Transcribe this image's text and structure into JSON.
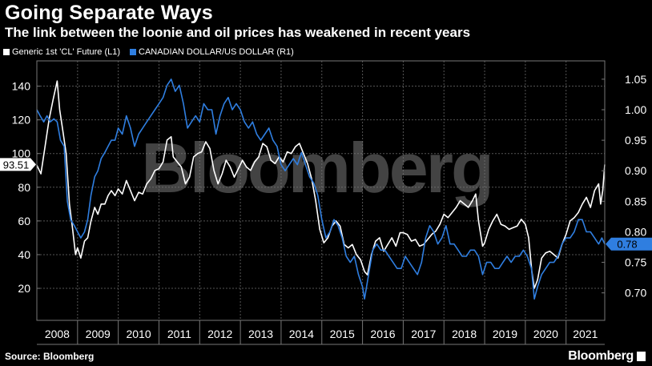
{
  "title": "Going Separate Ways",
  "subtitle": "The link between the loonie and oil prices has weakened in recent years",
  "legend": {
    "series1": "Generic 1st 'CL' Future (L1)",
    "series2": "CANADIAN DOLLAR/US DOLLAR (R1)"
  },
  "watermark": "Bloomberg",
  "source": "Source: Bloomberg",
  "logo": "Bloomberg",
  "colors": {
    "oil": "#ffffff",
    "cad": "#2f7ee0",
    "grid": "#555555",
    "background": "#000000"
  },
  "chart_data": {
    "type": "line",
    "x_categories": [
      "2008",
      "2009",
      "2010",
      "2011",
      "2012",
      "2013",
      "2014",
      "2015",
      "2016",
      "2017",
      "2018",
      "2019",
      "2020",
      "2021"
    ],
    "x_range": [
      2008.0,
      2021.95
    ],
    "left_axis": {
      "ticks": [
        20,
        40,
        60,
        80,
        100,
        120,
        140
      ],
      "range": [
        1,
        155
      ]
    },
    "right_axis": {
      "ticks": [
        "0.70",
        "0.75",
        "0.80",
        "0.85",
        "0.90",
        "0.95",
        "1.00",
        "1.05"
      ],
      "range": [
        0.655,
        1.08
      ]
    },
    "grid": "dashed horizontal and vertical",
    "last_value_labels": {
      "oil": "93.51",
      "cad": "0.78"
    },
    "series": [
      {
        "key": "oil",
        "axis": "left",
        "points": [
          [
            2008.0,
            93
          ],
          [
            2008.1,
            88
          ],
          [
            2008.2,
            104
          ],
          [
            2008.3,
            120
          ],
          [
            2008.4,
            132
          ],
          [
            2008.5,
            143
          ],
          [
            2008.56,
            126
          ],
          [
            2008.63,
            115
          ],
          [
            2008.72,
            100
          ],
          [
            2008.8,
            70
          ],
          [
            2008.88,
            55
          ],
          [
            2008.95,
            40
          ],
          [
            2009.0,
            44
          ],
          [
            2009.08,
            38
          ],
          [
            2009.17,
            48
          ],
          [
            2009.25,
            50
          ],
          [
            2009.33,
            60
          ],
          [
            2009.42,
            68
          ],
          [
            2009.5,
            64
          ],
          [
            2009.58,
            70
          ],
          [
            2009.67,
            70
          ],
          [
            2009.75,
            75
          ],
          [
            2009.83,
            78
          ],
          [
            2009.92,
            75
          ],
          [
            2010.0,
            79
          ],
          [
            2010.1,
            76
          ],
          [
            2010.2,
            84
          ],
          [
            2010.3,
            78
          ],
          [
            2010.4,
            72
          ],
          [
            2010.5,
            77
          ],
          [
            2010.6,
            76
          ],
          [
            2010.7,
            82
          ],
          [
            2010.8,
            85
          ],
          [
            2010.9,
            90
          ],
          [
            2011.0,
            91
          ],
          [
            2011.1,
            95
          ],
          [
            2011.2,
            108
          ],
          [
            2011.3,
            110
          ],
          [
            2011.35,
            98
          ],
          [
            2011.45,
            95
          ],
          [
            2011.55,
            92
          ],
          [
            2011.65,
            82
          ],
          [
            2011.75,
            86
          ],
          [
            2011.85,
            98
          ],
          [
            2011.95,
            100
          ],
          [
            2012.05,
            101
          ],
          [
            2012.15,
            107
          ],
          [
            2012.25,
            103
          ],
          [
            2012.35,
            90
          ],
          [
            2012.45,
            82
          ],
          [
            2012.55,
            88
          ],
          [
            2012.65,
            96
          ],
          [
            2012.75,
            92
          ],
          [
            2012.85,
            86
          ],
          [
            2012.95,
            91
          ],
          [
            2013.05,
            96
          ],
          [
            2013.15,
            92
          ],
          [
            2013.25,
            90
          ],
          [
            2013.35,
            95
          ],
          [
            2013.45,
            98
          ],
          [
            2013.55,
            106
          ],
          [
            2013.65,
            104
          ],
          [
            2013.75,
            96
          ],
          [
            2013.85,
            94
          ],
          [
            2013.95,
            98
          ],
          [
            2014.05,
            95
          ],
          [
            2014.15,
            101
          ],
          [
            2014.25,
            100
          ],
          [
            2014.35,
            104
          ],
          [
            2014.45,
            106
          ],
          [
            2014.55,
            100
          ],
          [
            2014.65,
            94
          ],
          [
            2014.75,
            85
          ],
          [
            2014.85,
            72
          ],
          [
            2014.95,
            55
          ],
          [
            2015.05,
            47
          ],
          [
            2015.15,
            50
          ],
          [
            2015.25,
            57
          ],
          [
            2015.35,
            60
          ],
          [
            2015.45,
            57
          ],
          [
            2015.55,
            46
          ],
          [
            2015.65,
            44
          ],
          [
            2015.75,
            46
          ],
          [
            2015.85,
            40
          ],
          [
            2015.95,
            37
          ],
          [
            2016.05,
            30
          ],
          [
            2016.12,
            28
          ],
          [
            2016.22,
            40
          ],
          [
            2016.32,
            48
          ],
          [
            2016.42,
            50
          ],
          [
            2016.52,
            42
          ],
          [
            2016.62,
            46
          ],
          [
            2016.72,
            50
          ],
          [
            2016.82,
            45
          ],
          [
            2016.92,
            53
          ],
          [
            2017.0,
            53
          ],
          [
            2017.1,
            52
          ],
          [
            2017.2,
            48
          ],
          [
            2017.3,
            49
          ],
          [
            2017.4,
            45
          ],
          [
            2017.5,
            46
          ],
          [
            2017.6,
            49
          ],
          [
            2017.7,
            52
          ],
          [
            2017.8,
            54
          ],
          [
            2017.9,
            58
          ],
          [
            2018.0,
            64
          ],
          [
            2018.1,
            62
          ],
          [
            2018.2,
            65
          ],
          [
            2018.3,
            68
          ],
          [
            2018.4,
            72
          ],
          [
            2018.5,
            70
          ],
          [
            2018.6,
            68
          ],
          [
            2018.7,
            72
          ],
          [
            2018.78,
            76
          ],
          [
            2018.85,
            60
          ],
          [
            2018.95,
            45
          ],
          [
            2019.0,
            47
          ],
          [
            2019.1,
            55
          ],
          [
            2019.2,
            60
          ],
          [
            2019.3,
            64
          ],
          [
            2019.4,
            58
          ],
          [
            2019.5,
            57
          ],
          [
            2019.6,
            55
          ],
          [
            2019.7,
            56
          ],
          [
            2019.8,
            57
          ],
          [
            2019.9,
            61
          ],
          [
            2020.0,
            58
          ],
          [
            2020.08,
            50
          ],
          [
            2020.16,
            30
          ],
          [
            2020.22,
            20
          ],
          [
            2020.3,
            25
          ],
          [
            2020.4,
            38
          ],
          [
            2020.5,
            41
          ],
          [
            2020.6,
            42
          ],
          [
            2020.7,
            40
          ],
          [
            2020.8,
            38
          ],
          [
            2020.9,
            46
          ],
          [
            2021.0,
            52
          ],
          [
            2021.1,
            60
          ],
          [
            2021.2,
            62
          ],
          [
            2021.3,
            65
          ],
          [
            2021.4,
            70
          ],
          [
            2021.5,
            74
          ],
          [
            2021.6,
            68
          ],
          [
            2021.7,
            78
          ],
          [
            2021.8,
            82
          ],
          [
            2021.85,
            70
          ],
          [
            2021.9,
            78
          ],
          [
            2021.95,
            93.51
          ]
        ]
      },
      {
        "key": "cad",
        "axis": "right",
        "points": [
          [
            2008.0,
            1.0
          ],
          [
            2008.08,
            0.99
          ],
          [
            2008.17,
            0.98
          ],
          [
            2008.25,
            0.99
          ],
          [
            2008.33,
            0.98
          ],
          [
            2008.42,
            0.985
          ],
          [
            2008.5,
            0.98
          ],
          [
            2008.58,
            0.95
          ],
          [
            2008.67,
            0.94
          ],
          [
            2008.75,
            0.85
          ],
          [
            2008.83,
            0.82
          ],
          [
            2008.92,
            0.81
          ],
          [
            2009.0,
            0.8
          ],
          [
            2009.08,
            0.79
          ],
          [
            2009.17,
            0.8
          ],
          [
            2009.25,
            0.82
          ],
          [
            2009.33,
            0.86
          ],
          [
            2009.42,
            0.89
          ],
          [
            2009.5,
            0.9
          ],
          [
            2009.58,
            0.92
          ],
          [
            2009.67,
            0.93
          ],
          [
            2009.75,
            0.94
          ],
          [
            2009.83,
            0.95
          ],
          [
            2009.92,
            0.95
          ],
          [
            2010.0,
            0.97
          ],
          [
            2010.1,
            0.96
          ],
          [
            2010.2,
            0.99
          ],
          [
            2010.3,
            0.97
          ],
          [
            2010.4,
            0.94
          ],
          [
            2010.5,
            0.96
          ],
          [
            2010.6,
            0.97
          ],
          [
            2010.7,
            0.98
          ],
          [
            2010.8,
            0.99
          ],
          [
            2010.9,
            1.0
          ],
          [
            2011.0,
            1.01
          ],
          [
            2011.1,
            1.02
          ],
          [
            2011.2,
            1.04
          ],
          [
            2011.3,
            1.05
          ],
          [
            2011.4,
            1.03
          ],
          [
            2011.5,
            1.04
          ],
          [
            2011.6,
            1.01
          ],
          [
            2011.7,
            0.97
          ],
          [
            2011.8,
            0.98
          ],
          [
            2011.9,
            0.99
          ],
          [
            2012.0,
            0.98
          ],
          [
            2012.1,
            1.01
          ],
          [
            2012.2,
            1.0
          ],
          [
            2012.3,
            1.0
          ],
          [
            2012.4,
            0.96
          ],
          [
            2012.5,
            0.99
          ],
          [
            2012.6,
            1.01
          ],
          [
            2012.7,
            1.02
          ],
          [
            2012.8,
            1.0
          ],
          [
            2012.9,
            1.01
          ],
          [
            2013.0,
            1.0
          ],
          [
            2013.1,
            0.98
          ],
          [
            2013.2,
            0.97
          ],
          [
            2013.3,
            0.98
          ],
          [
            2013.4,
            0.96
          ],
          [
            2013.5,
            0.95
          ],
          [
            2013.6,
            0.96
          ],
          [
            2013.7,
            0.97
          ],
          [
            2013.8,
            0.95
          ],
          [
            2013.9,
            0.94
          ],
          [
            2014.0,
            0.91
          ],
          [
            2014.1,
            0.9
          ],
          [
            2014.2,
            0.91
          ],
          [
            2014.3,
            0.92
          ],
          [
            2014.4,
            0.91
          ],
          [
            2014.5,
            0.93
          ],
          [
            2014.6,
            0.91
          ],
          [
            2014.7,
            0.89
          ],
          [
            2014.8,
            0.88
          ],
          [
            2014.9,
            0.86
          ],
          [
            2015.0,
            0.82
          ],
          [
            2015.1,
            0.79
          ],
          [
            2015.2,
            0.8
          ],
          [
            2015.3,
            0.82
          ],
          [
            2015.4,
            0.81
          ],
          [
            2015.5,
            0.79
          ],
          [
            2015.6,
            0.76
          ],
          [
            2015.7,
            0.75
          ],
          [
            2015.8,
            0.76
          ],
          [
            2015.9,
            0.73
          ],
          [
            2016.0,
            0.71
          ],
          [
            2016.05,
            0.69
          ],
          [
            2016.15,
            0.73
          ],
          [
            2016.25,
            0.77
          ],
          [
            2016.35,
            0.78
          ],
          [
            2016.45,
            0.77
          ],
          [
            2016.55,
            0.77
          ],
          [
            2016.65,
            0.76
          ],
          [
            2016.75,
            0.75
          ],
          [
            2016.85,
            0.74
          ],
          [
            2016.95,
            0.74
          ],
          [
            2017.05,
            0.76
          ],
          [
            2017.15,
            0.75
          ],
          [
            2017.25,
            0.74
          ],
          [
            2017.35,
            0.73
          ],
          [
            2017.45,
            0.75
          ],
          [
            2017.55,
            0.79
          ],
          [
            2017.65,
            0.81
          ],
          [
            2017.75,
            0.8
          ],
          [
            2017.85,
            0.78
          ],
          [
            2017.95,
            0.79
          ],
          [
            2018.05,
            0.81
          ],
          [
            2018.15,
            0.78
          ],
          [
            2018.25,
            0.78
          ],
          [
            2018.35,
            0.77
          ],
          [
            2018.45,
            0.76
          ],
          [
            2018.55,
            0.76
          ],
          [
            2018.65,
            0.77
          ],
          [
            2018.75,
            0.77
          ],
          [
            2018.85,
            0.76
          ],
          [
            2018.95,
            0.73
          ],
          [
            2019.05,
            0.75
          ],
          [
            2019.15,
            0.75
          ],
          [
            2019.25,
            0.74
          ],
          [
            2019.35,
            0.74
          ],
          [
            2019.45,
            0.75
          ],
          [
            2019.55,
            0.76
          ],
          [
            2019.65,
            0.75
          ],
          [
            2019.75,
            0.76
          ],
          [
            2019.85,
            0.76
          ],
          [
            2019.95,
            0.77
          ],
          [
            2020.05,
            0.76
          ],
          [
            2020.15,
            0.74
          ],
          [
            2020.22,
            0.69
          ],
          [
            2020.3,
            0.71
          ],
          [
            2020.4,
            0.73
          ],
          [
            2020.5,
            0.74
          ],
          [
            2020.6,
            0.75
          ],
          [
            2020.7,
            0.75
          ],
          [
            2020.8,
            0.76
          ],
          [
            2020.9,
            0.78
          ],
          [
            2021.0,
            0.79
          ],
          [
            2021.1,
            0.79
          ],
          [
            2021.2,
            0.8
          ],
          [
            2021.3,
            0.82
          ],
          [
            2021.4,
            0.82
          ],
          [
            2021.5,
            0.8
          ],
          [
            2021.6,
            0.8
          ],
          [
            2021.7,
            0.79
          ],
          [
            2021.8,
            0.78
          ],
          [
            2021.88,
            0.79
          ],
          [
            2021.95,
            0.78
          ]
        ]
      }
    ]
  }
}
